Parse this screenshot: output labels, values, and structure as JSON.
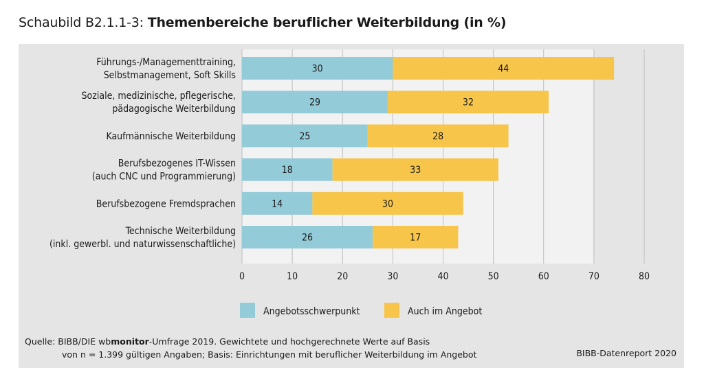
{
  "header": {
    "prefix": "Schaubild B2.1.1-3: ",
    "title": "Themenbereiche beruflicher Weiterbildung (in %)"
  },
  "chart_data": {
    "type": "bar",
    "orientation": "horizontal",
    "stacked": true,
    "categories": [
      [
        "Führungs-/Managementtraining,",
        "Selbstmanagement, Soft Skills"
      ],
      [
        "Soziale, medizinische, pflegerische,",
        "pädagogische Weiterbildung"
      ],
      [
        "Kaufmännische Weiterbildung"
      ],
      [
        "Berufsbezogenes IT-Wissen",
        "(auch CNC und Programmierung)"
      ],
      [
        "Berufsbezogene Fremdsprachen"
      ],
      [
        "Technische Weiterbildung",
        "(inkl. gewerbl. und naturwissenschaftliche)"
      ]
    ],
    "series": [
      {
        "name": "Angebotsschwerpunkt",
        "color": "#94cbd8",
        "values": [
          30,
          29,
          25,
          18,
          14,
          26
        ]
      },
      {
        "name": "Auch im Angebot",
        "color": "#f6c54a",
        "values": [
          44,
          32,
          28,
          33,
          30,
          17
        ]
      }
    ],
    "xlim": [
      0,
      80
    ],
    "xticks": [
      0,
      10,
      20,
      30,
      40,
      50,
      60,
      70,
      80
    ],
    "grid": true,
    "legend": "bottom"
  },
  "footer": {
    "source_prefix": "Quelle: BIBB/DIE wb",
    "source_bold": "monitor",
    "source_rest": "-Umfrage 2019. Gewichtete und hochgerechnete Werte auf Basis",
    "source_line2": "von n = 1.399 gültigen Angaben; Basis: Einrichtungen mit beruflicher Weiterbildung im Angebot",
    "report": "BIBB-Datenreport 2020"
  }
}
